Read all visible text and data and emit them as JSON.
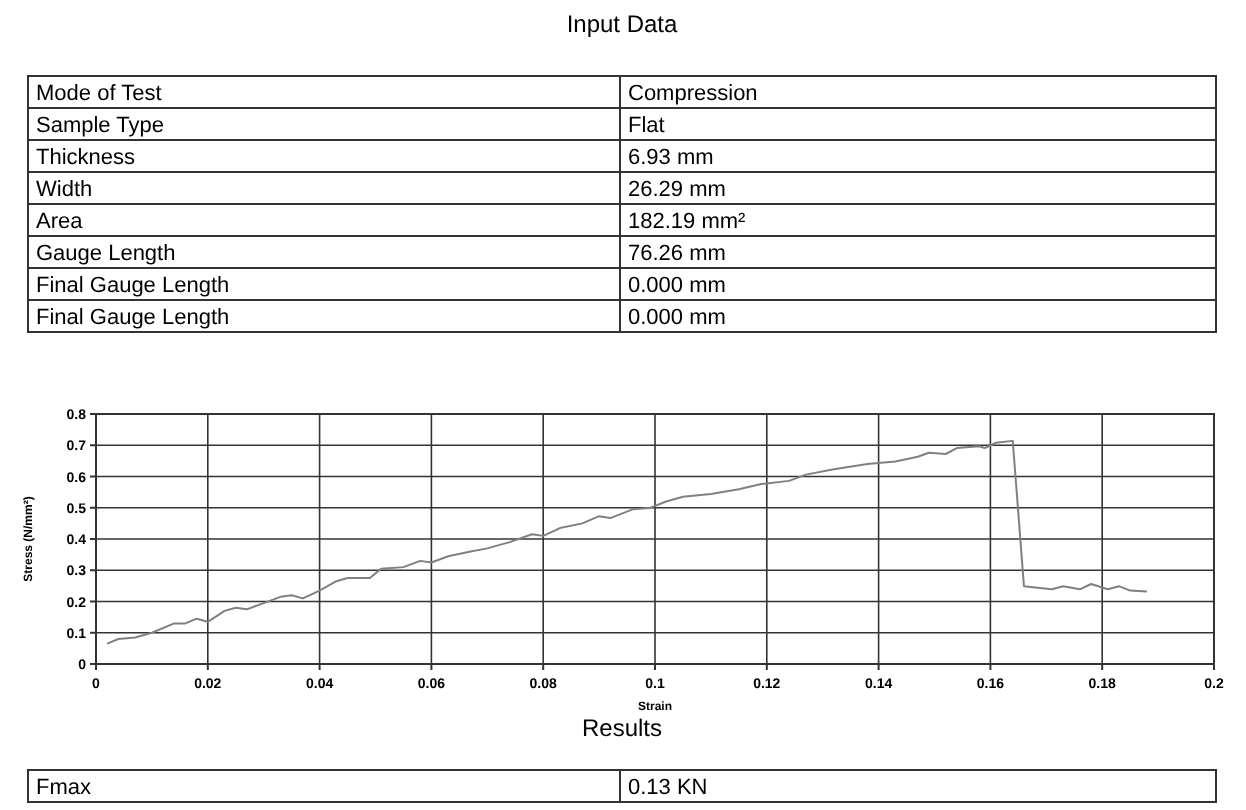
{
  "chart_data": [
    {
      "type": "other",
      "title": "Input Data",
      "annotations": [
        "Mode of Test",
        "Compression",
        "Sample Type",
        "Flat",
        "Thickness",
        "6.93 mm",
        "Width",
        "26.29 mm",
        "Area",
        "182.19 mm²",
        "Gauge Length",
        "76.26 mm",
        "Final Gauge Length",
        "0.000 mm",
        "Final Gauge Length",
        "0.000 mm"
      ]
    },
    {
      "type": "line",
      "xlabel": "Strain",
      "ylabel": "Stress (N/mm²)",
      "xlim": [
        0,
        0.2
      ],
      "ylim": [
        0,
        0.8
      ],
      "xticks": [
        0,
        0.02,
        0.04,
        0.06,
        0.08,
        0.1,
        0.12,
        0.14,
        0.16,
        0.18,
        0.2
      ],
      "yticks": [
        0,
        0.1,
        0.2,
        0.3,
        0.4,
        0.5,
        0.6,
        0.7,
        0.8
      ],
      "grid": true,
      "marker": "none",
      "line_style": "solid",
      "series": [
        {
          "color": "#808080",
          "x": [
            0.002,
            0.004,
            0.007,
            0.01,
            0.014,
            0.016,
            0.018,
            0.02,
            0.023,
            0.025,
            0.027,
            0.03,
            0.033,
            0.035,
            0.037,
            0.04,
            0.043,
            0.045,
            0.049,
            0.051,
            0.055,
            0.058,
            0.06,
            0.063,
            0.067,
            0.07,
            0.074,
            0.078,
            0.08,
            0.083,
            0.087,
            0.09,
            0.092,
            0.096,
            0.099,
            0.102,
            0.105,
            0.11,
            0.115,
            0.119,
            0.124,
            0.127,
            0.132,
            0.138,
            0.143,
            0.147,
            0.149,
            0.152,
            0.154,
            0.158,
            0.159,
            0.161,
            0.164,
            0.166,
            0.168,
            0.171,
            0.173,
            0.176,
            0.178,
            0.181,
            0.183,
            0.185,
            0.188
          ],
          "values": [
            0.065,
            0.08,
            0.085,
            0.1,
            0.13,
            0.13,
            0.145,
            0.135,
            0.17,
            0.18,
            0.175,
            0.195,
            0.215,
            0.22,
            0.21,
            0.235,
            0.265,
            0.275,
            0.275,
            0.305,
            0.31,
            0.33,
            0.325,
            0.345,
            0.36,
            0.37,
            0.39,
            0.415,
            0.41,
            0.435,
            0.45,
            0.473,
            0.467,
            0.495,
            0.499,
            0.52,
            0.535,
            0.544,
            0.559,
            0.576,
            0.586,
            0.606,
            0.623,
            0.64,
            0.648,
            0.663,
            0.676,
            0.672,
            0.691,
            0.697,
            0.691,
            0.708,
            0.714,
            0.249,
            0.245,
            0.239,
            0.249,
            0.239,
            0.256,
            0.239,
            0.249,
            0.235,
            0.232
          ]
        }
      ]
    },
    {
      "type": "other",
      "title": "Results",
      "annotations": [
        "Fmax",
        "0.13 KN"
      ]
    }
  ]
}
